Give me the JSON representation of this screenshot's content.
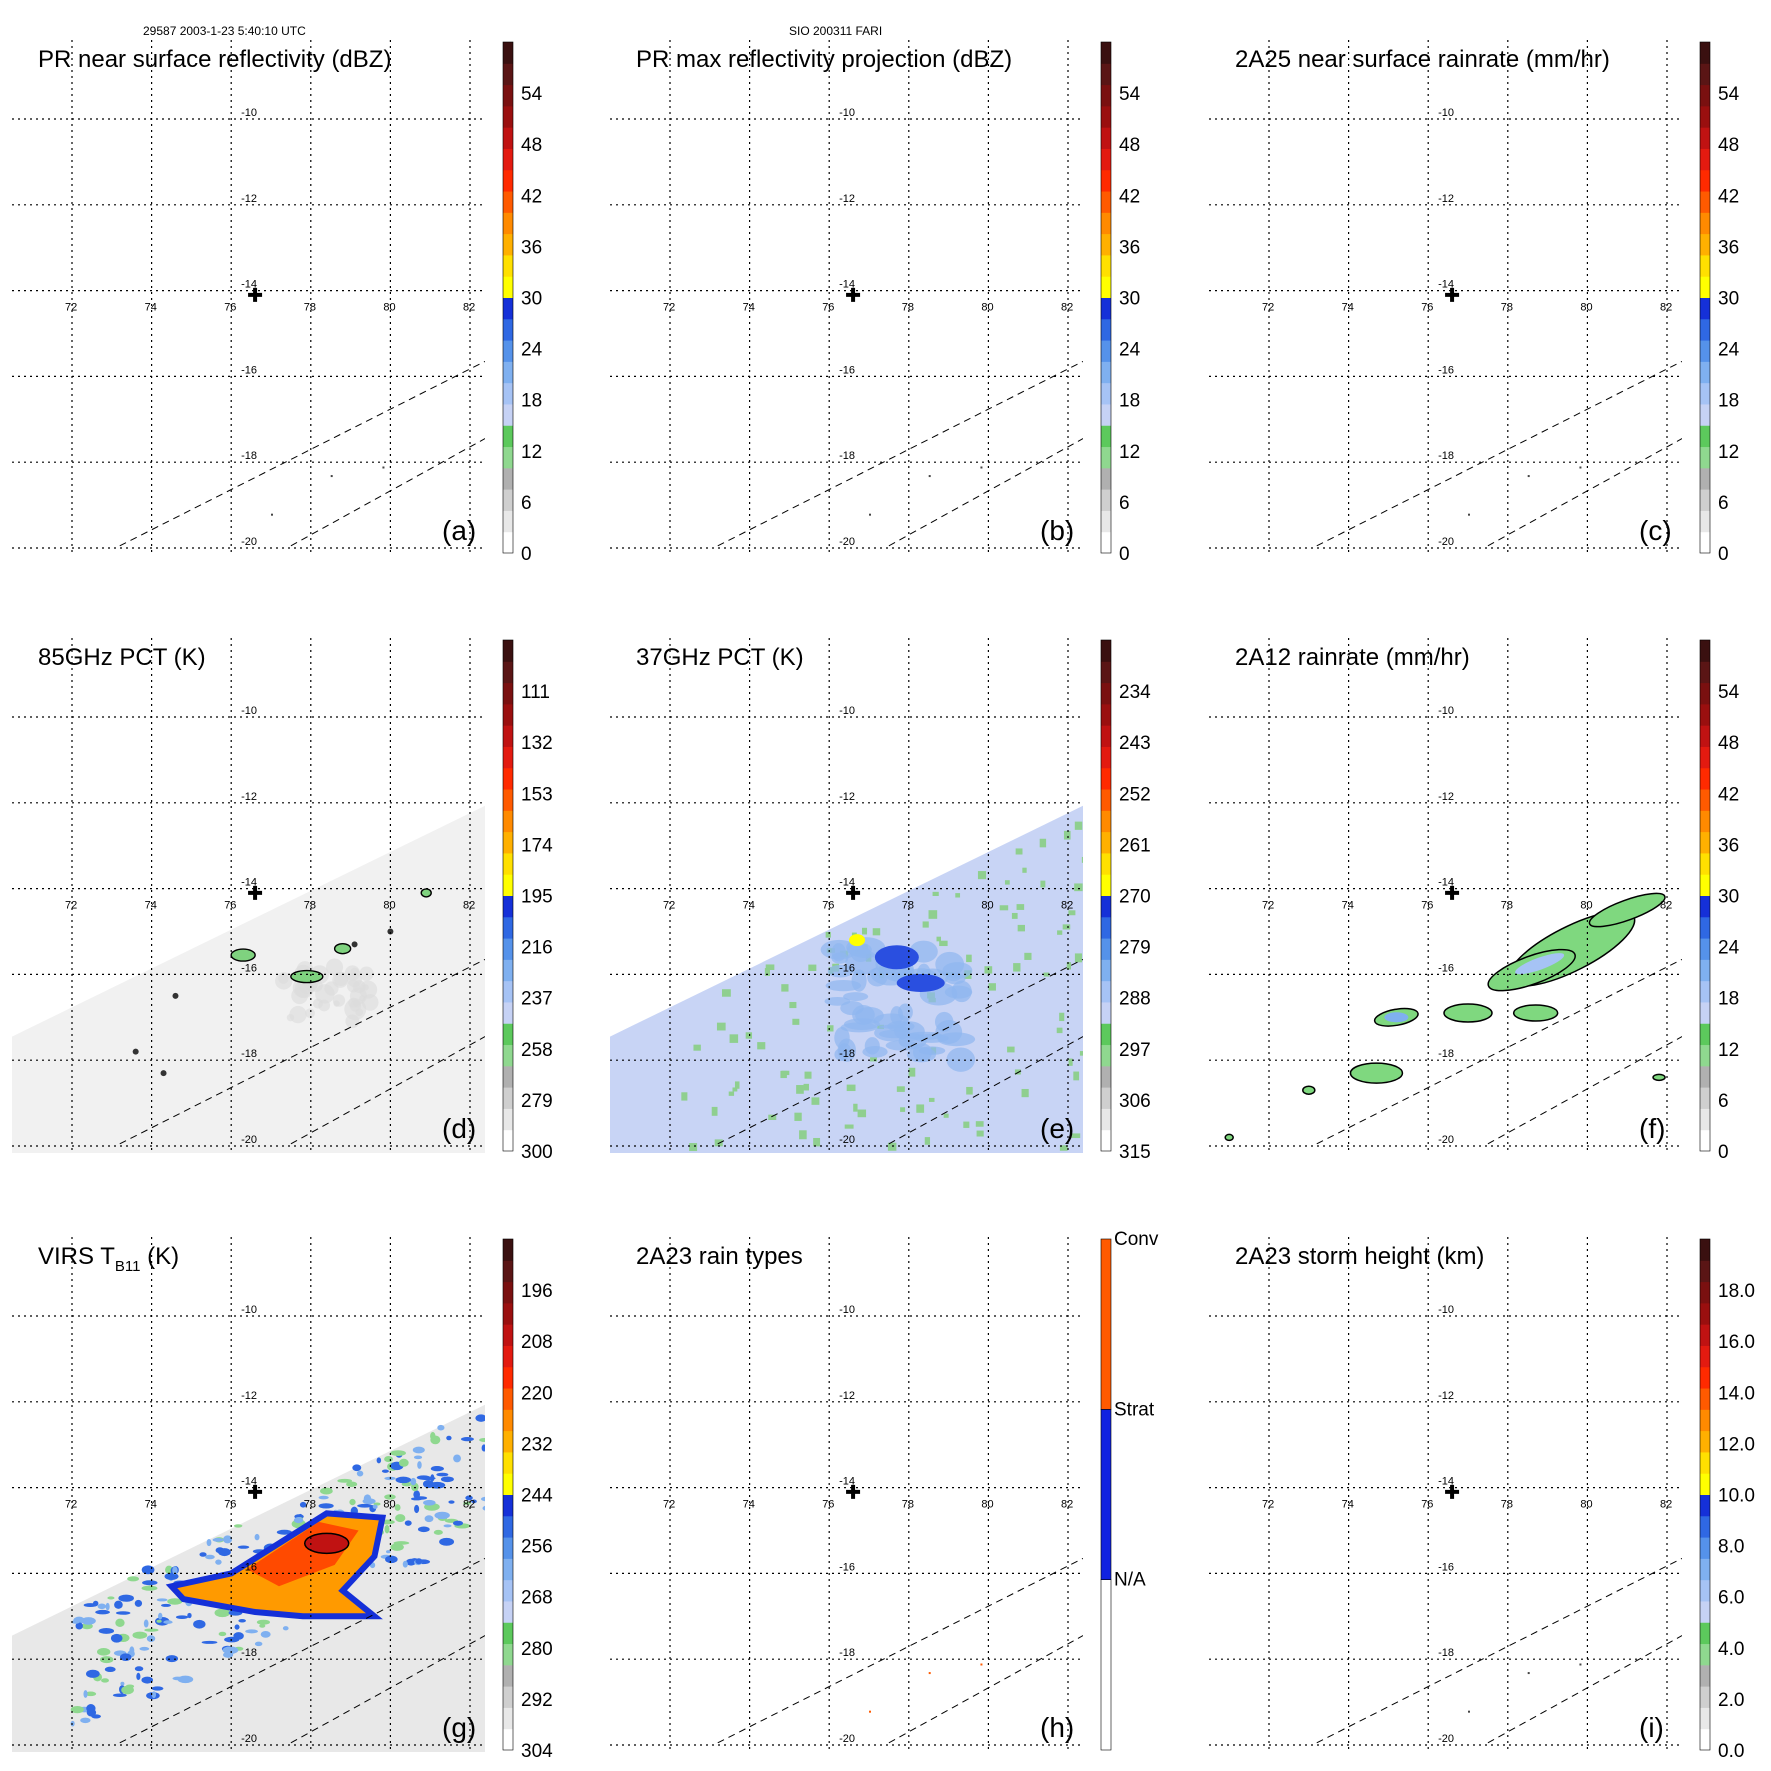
{
  "header": {
    "left": "29587 2003-1-23 5:40:10 UTC",
    "center": "SIO 200311 FARI"
  },
  "chart_data": [
    {
      "id": "a",
      "type": "heatmap",
      "title": "PR near surface reflectivity (dBZ)",
      "panel_label": "(a)",
      "lon_ticks": [
        72,
        74,
        76,
        78,
        80,
        82
      ],
      "lat_ticks": [
        -10,
        -12,
        -14,
        -16,
        -18,
        -20
      ],
      "colorbar": {
        "ticks": [
          "0",
          "6",
          "12",
          "18",
          "24",
          "30",
          "36",
          "42",
          "48",
          "54"
        ],
        "range": [
          0,
          60
        ]
      },
      "center": {
        "lon": 76.6,
        "lat": -14.1
      },
      "swath": "none",
      "echoes": "sparse"
    },
    {
      "id": "b",
      "type": "heatmap",
      "title": "PR max reflectivity projection (dBZ)",
      "panel_label": "(b)",
      "lon_ticks": [
        72,
        74,
        76,
        78,
        80,
        82
      ],
      "lat_ticks": [
        -10,
        -12,
        -14,
        -16,
        -18,
        -20
      ],
      "colorbar": {
        "ticks": [
          "0",
          "6",
          "12",
          "18",
          "24",
          "30",
          "36",
          "42",
          "48",
          "54"
        ],
        "range": [
          0,
          60
        ]
      },
      "center": {
        "lon": 76.6,
        "lat": -14.1
      },
      "swath": "none",
      "echoes": "sparse"
    },
    {
      "id": "c",
      "type": "heatmap",
      "title": "2A25 near surface rainrate (mm/hr)",
      "panel_label": "(c)",
      "lon_ticks": [
        72,
        74,
        76,
        78,
        80,
        82
      ],
      "lat_ticks": [
        -10,
        -12,
        -14,
        -16,
        -18,
        -20
      ],
      "colorbar": {
        "ticks": [
          "0",
          "6",
          "12",
          "18",
          "24",
          "30",
          "36",
          "42",
          "48",
          "54"
        ],
        "range": [
          0,
          60
        ]
      },
      "center": {
        "lon": 76.6,
        "lat": -14.1
      },
      "swath": "none",
      "echoes": "sparse"
    },
    {
      "id": "d",
      "type": "heatmap",
      "title": "85GHz PCT (K)",
      "panel_label": "(d)",
      "lon_ticks": [
        72,
        74,
        76,
        78,
        80,
        82
      ],
      "lat_ticks": [
        -10,
        -12,
        -14,
        -16,
        -18,
        -20
      ],
      "colorbar": {
        "ticks": [
          "300",
          "279",
          "258",
          "237",
          "216",
          "195",
          "174",
          "153",
          "132",
          "111"
        ],
        "range": [
          300,
          90
        ]
      },
      "center": {
        "lon": 76.6,
        "lat": -14.1
      },
      "swath": "gray"
    },
    {
      "id": "e",
      "type": "heatmap",
      "title": "37GHz PCT (K)",
      "panel_label": "(e)",
      "lon_ticks": [
        72,
        74,
        76,
        78,
        80,
        82
      ],
      "lat_ticks": [
        -10,
        -12,
        -14,
        -16,
        -18,
        -20
      ],
      "colorbar": {
        "ticks": [
          "315",
          "306",
          "297",
          "288",
          "279",
          "270",
          "261",
          "252",
          "243",
          "234"
        ],
        "range": [
          315,
          225
        ]
      },
      "center": {
        "lon": 76.6,
        "lat": -14.1
      },
      "swath": "lightblue"
    },
    {
      "id": "f",
      "type": "heatmap",
      "title": "2A12 rainrate (mm/hr)",
      "panel_label": "(f)",
      "lon_ticks": [
        72,
        74,
        76,
        78,
        80,
        82
      ],
      "lat_ticks": [
        -10,
        -12,
        -14,
        -16,
        -18,
        -20
      ],
      "colorbar": {
        "ticks": [
          "0",
          "6",
          "12",
          "18",
          "24",
          "30",
          "36",
          "42",
          "48",
          "54"
        ],
        "range": [
          0,
          60
        ]
      },
      "center": {
        "lon": 76.6,
        "lat": -14.1
      },
      "swath": "rain"
    },
    {
      "id": "g",
      "type": "heatmap",
      "title": "VIRS T",
      "title_sub": "B11",
      "title_unit": " (K)",
      "panel_label": "(g)",
      "lon_ticks": [
        72,
        74,
        76,
        78,
        80,
        82
      ],
      "lat_ticks": [
        -10,
        -12,
        -14,
        -16,
        -18,
        -20
      ],
      "colorbar": {
        "ticks": [
          "304",
          "292",
          "280",
          "268",
          "256",
          "244",
          "232",
          "220",
          "208",
          "196"
        ],
        "range": [
          304,
          184
        ]
      },
      "center": {
        "lon": 76.6,
        "lat": -14.1
      },
      "swath": "ir"
    },
    {
      "id": "h",
      "type": "heatmap",
      "title": "2A23 rain types",
      "panel_label": "(h)",
      "lon_ticks": [
        72,
        74,
        76,
        78,
        80,
        82
      ],
      "lat_ticks": [
        -10,
        -12,
        -14,
        -16,
        -18,
        -20
      ],
      "colorbar": {
        "categorical": true,
        "categories": [
          "N/A",
          "Strat",
          "Conv"
        ]
      },
      "center": {
        "lon": 76.6,
        "lat": -14.1
      },
      "swath": "none",
      "echoes": "sparse"
    },
    {
      "id": "i",
      "type": "heatmap",
      "title": "2A23 storm height (km)",
      "panel_label": "(i)",
      "lon_ticks": [
        72,
        74,
        76,
        78,
        80,
        82
      ],
      "lat_ticks": [
        -10,
        -12,
        -14,
        -16,
        -18,
        -20
      ],
      "colorbar": {
        "ticks": [
          "0.0",
          "2.0",
          "4.0",
          "6.0",
          "8.0",
          "10.0",
          "12.0",
          "14.0",
          "16.0",
          "18.0"
        ],
        "range": [
          0,
          20
        ]
      },
      "center": {
        "lon": 76.6,
        "lat": -14.1
      },
      "swath": "none",
      "echoes": "sparse"
    }
  ],
  "colors": {
    "colorbar_bands": [
      "#ffffff",
      "#e8e8e8",
      "#cfcfcf",
      "#b0b0b0",
      "#8fd88f",
      "#5cc95c",
      "#c6d2f5",
      "#a6c3f5",
      "#7fb0f0",
      "#5592ea",
      "#2f68e3",
      "#1530d8",
      "#ffff00",
      "#ffe000",
      "#ffb000",
      "#ff8a00",
      "#ff5a00",
      "#ff2a00",
      "#e31a10",
      "#c01212",
      "#9a0f0f",
      "#7a1010",
      "#5a1515",
      "#3a1010"
    ],
    "rain_types": [
      "#ffffff",
      "#1022e0",
      "#ff5a00"
    ]
  }
}
